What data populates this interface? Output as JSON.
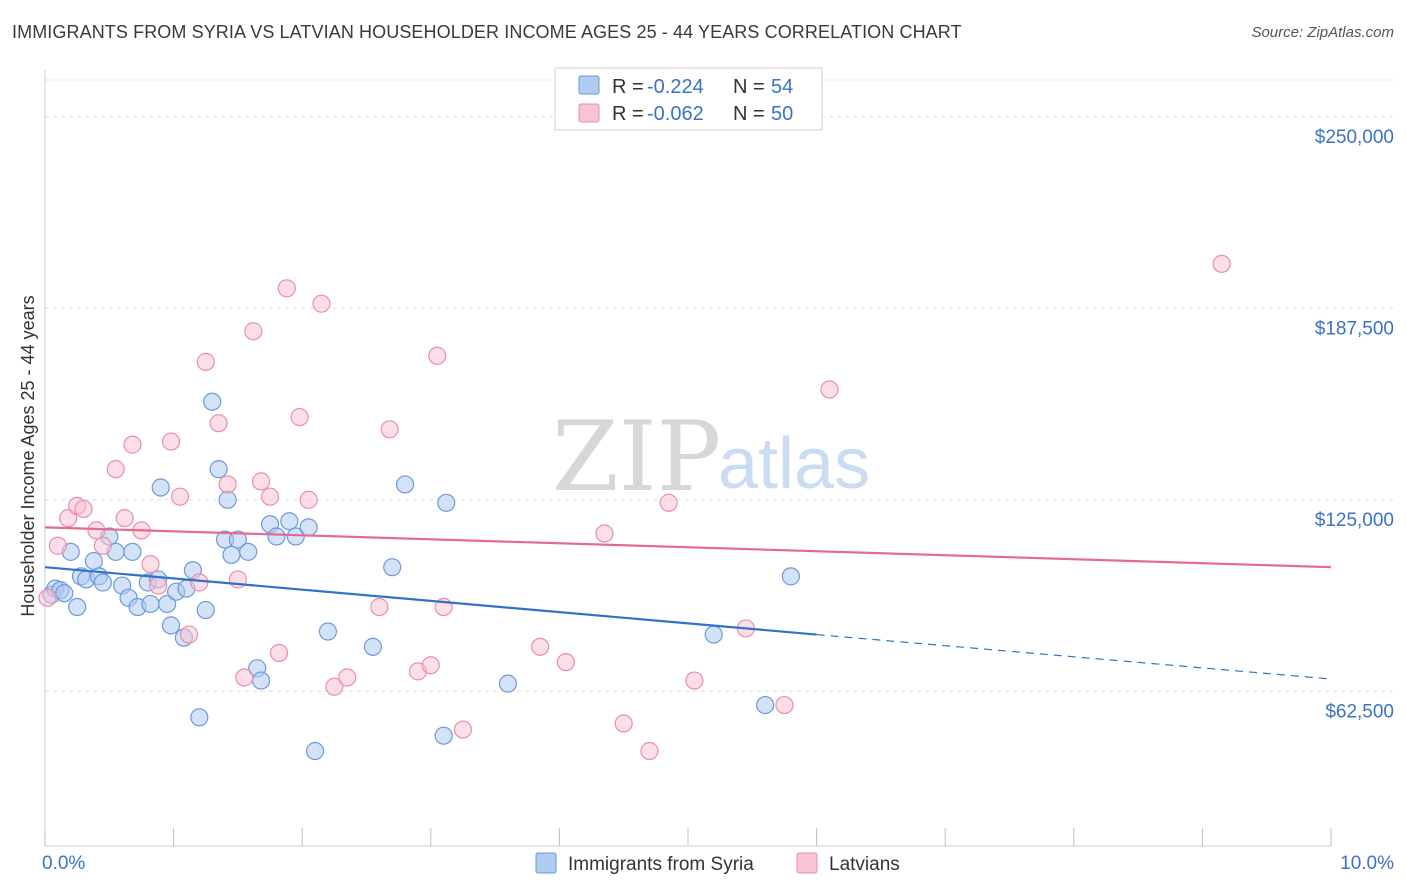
{
  "title": "IMMIGRANTS FROM SYRIA VS LATVIAN HOUSEHOLDER INCOME AGES 25 - 44 YEARS CORRELATION CHART",
  "source": "Source: ZipAtlas.com",
  "watermark": {
    "zip": "ZIP",
    "atlas": "atlas"
  },
  "legend": {
    "rows": [
      {
        "r_label": "R = ",
        "r_value": "-0.224",
        "n_label": "N = ",
        "n_value": "54",
        "color": "#aecbf0",
        "stroke": "#6b9bd8"
      },
      {
        "r_label": "R = ",
        "r_value": "-0.062",
        "n_label": "N = ",
        "n_value": "50",
        "color": "#f8c3d4",
        "stroke": "#e98fac"
      }
    ]
  },
  "bottom_legend": [
    "Immigrants from Syria",
    "Latvians"
  ],
  "chart_data": {
    "type": "scatter",
    "title": "IMMIGRANTS FROM SYRIA VS LATVIAN HOUSEHOLDER INCOME AGES 25 - 44 YEARS CORRELATION CHART",
    "xlabel": "",
    "ylabel": "Householder Income Ages 25 - 44 years",
    "xlim": [
      0,
      10
    ],
    "ylim": [
      12000,
      262000
    ],
    "x_tick_labels": [
      "0.0%",
      "10.0%"
    ],
    "y_ticks": [
      62500,
      125000,
      187500,
      250000
    ],
    "y_tick_labels": [
      "$62,500",
      "$125,000",
      "$187,500",
      "$250,000"
    ],
    "grid": true,
    "series": [
      {
        "name": "Immigrants from Syria",
        "color": "#aecbf0",
        "stroke": "#6b9bd8",
        "line_color": "#2f73c9",
        "trend": {
          "x0": 0.0,
          "y0": 103000,
          "x1": 6.0,
          "y1": 81000,
          "dash_x1": 10.0,
          "dash_y1": 66500
        },
        "points": [
          [
            0.05,
            94000
          ],
          [
            0.08,
            96000
          ],
          [
            0.12,
            95500
          ],
          [
            0.15,
            94500
          ],
          [
            0.2,
            108000
          ],
          [
            0.25,
            90000
          ],
          [
            0.28,
            100000
          ],
          [
            0.32,
            99000
          ],
          [
            0.38,
            105000
          ],
          [
            0.42,
            100000
          ],
          [
            0.45,
            98000
          ],
          [
            0.5,
            113000
          ],
          [
            0.55,
            108000
          ],
          [
            0.6,
            97000
          ],
          [
            0.65,
            93000
          ],
          [
            0.68,
            108000
          ],
          [
            0.72,
            90000
          ],
          [
            0.8,
            98000
          ],
          [
            0.82,
            91000
          ],
          [
            0.88,
            99000
          ],
          [
            0.9,
            129000
          ],
          [
            0.95,
            91000
          ],
          [
            0.98,
            84000
          ],
          [
            1.02,
            95000
          ],
          [
            1.08,
            80000
          ],
          [
            1.1,
            96000
          ],
          [
            1.15,
            102000
          ],
          [
            1.2,
            54000
          ],
          [
            1.25,
            89000
          ],
          [
            1.3,
            157000
          ],
          [
            1.35,
            135000
          ],
          [
            1.4,
            112000
          ],
          [
            1.42,
            125000
          ],
          [
            1.45,
            107000
          ],
          [
            1.5,
            112000
          ],
          [
            1.58,
            108000
          ],
          [
            1.65,
            70000
          ],
          [
            1.68,
            66000
          ],
          [
            1.75,
            117000
          ],
          [
            1.8,
            113000
          ],
          [
            1.9,
            118000
          ],
          [
            1.95,
            113000
          ],
          [
            2.05,
            116000
          ],
          [
            2.1,
            43000
          ],
          [
            2.2,
            82000
          ],
          [
            2.55,
            77000
          ],
          [
            2.7,
            103000
          ],
          [
            2.8,
            130000
          ],
          [
            3.1,
            48000
          ],
          [
            3.12,
            124000
          ],
          [
            3.6,
            65000
          ],
          [
            5.2,
            81000
          ],
          [
            5.6,
            58000
          ],
          [
            5.8,
            100000
          ]
        ]
      },
      {
        "name": "Latvians",
        "color": "#f8c3d4",
        "stroke": "#e98fac",
        "line_color": "#e36a93",
        "trend": {
          "x0": 0.0,
          "y0": 116000,
          "x1": 10.0,
          "y1": 103000
        },
        "points": [
          [
            0.02,
            93000
          ],
          [
            0.1,
            110000
          ],
          [
            0.18,
            119000
          ],
          [
            0.25,
            123000
          ],
          [
            0.3,
            122000
          ],
          [
            0.4,
            115000
          ],
          [
            0.45,
            110000
          ],
          [
            0.55,
            135000
          ],
          [
            0.62,
            119000
          ],
          [
            0.68,
            143000
          ],
          [
            0.75,
            115000
          ],
          [
            0.82,
            104000
          ],
          [
            0.88,
            97000
          ],
          [
            0.98,
            144000
          ],
          [
            1.05,
            126000
          ],
          [
            1.12,
            81000
          ],
          [
            1.2,
            98000
          ],
          [
            1.25,
            170000
          ],
          [
            1.35,
            150000
          ],
          [
            1.42,
            130000
          ],
          [
            1.5,
            99000
          ],
          [
            1.55,
            67000
          ],
          [
            1.62,
            180000
          ],
          [
            1.68,
            131000
          ],
          [
            1.75,
            126000
          ],
          [
            1.82,
            75000
          ],
          [
            1.88,
            194000
          ],
          [
            1.98,
            152000
          ],
          [
            2.05,
            125000
          ],
          [
            2.15,
            189000
          ],
          [
            2.25,
            64000
          ],
          [
            2.35,
            67000
          ],
          [
            2.6,
            90000
          ],
          [
            2.68,
            148000
          ],
          [
            2.9,
            69000
          ],
          [
            3.0,
            71000
          ],
          [
            3.05,
            172000
          ],
          [
            3.1,
            90000
          ],
          [
            3.25,
            50000
          ],
          [
            3.85,
            77000
          ],
          [
            4.05,
            72000
          ],
          [
            4.35,
            114000
          ],
          [
            4.5,
            52000
          ],
          [
            4.7,
            43000
          ],
          [
            4.85,
            124000
          ],
          [
            5.05,
            66000
          ],
          [
            5.45,
            83000
          ],
          [
            5.75,
            58000
          ],
          [
            6.1,
            161000
          ],
          [
            9.15,
            202000
          ]
        ]
      }
    ]
  }
}
